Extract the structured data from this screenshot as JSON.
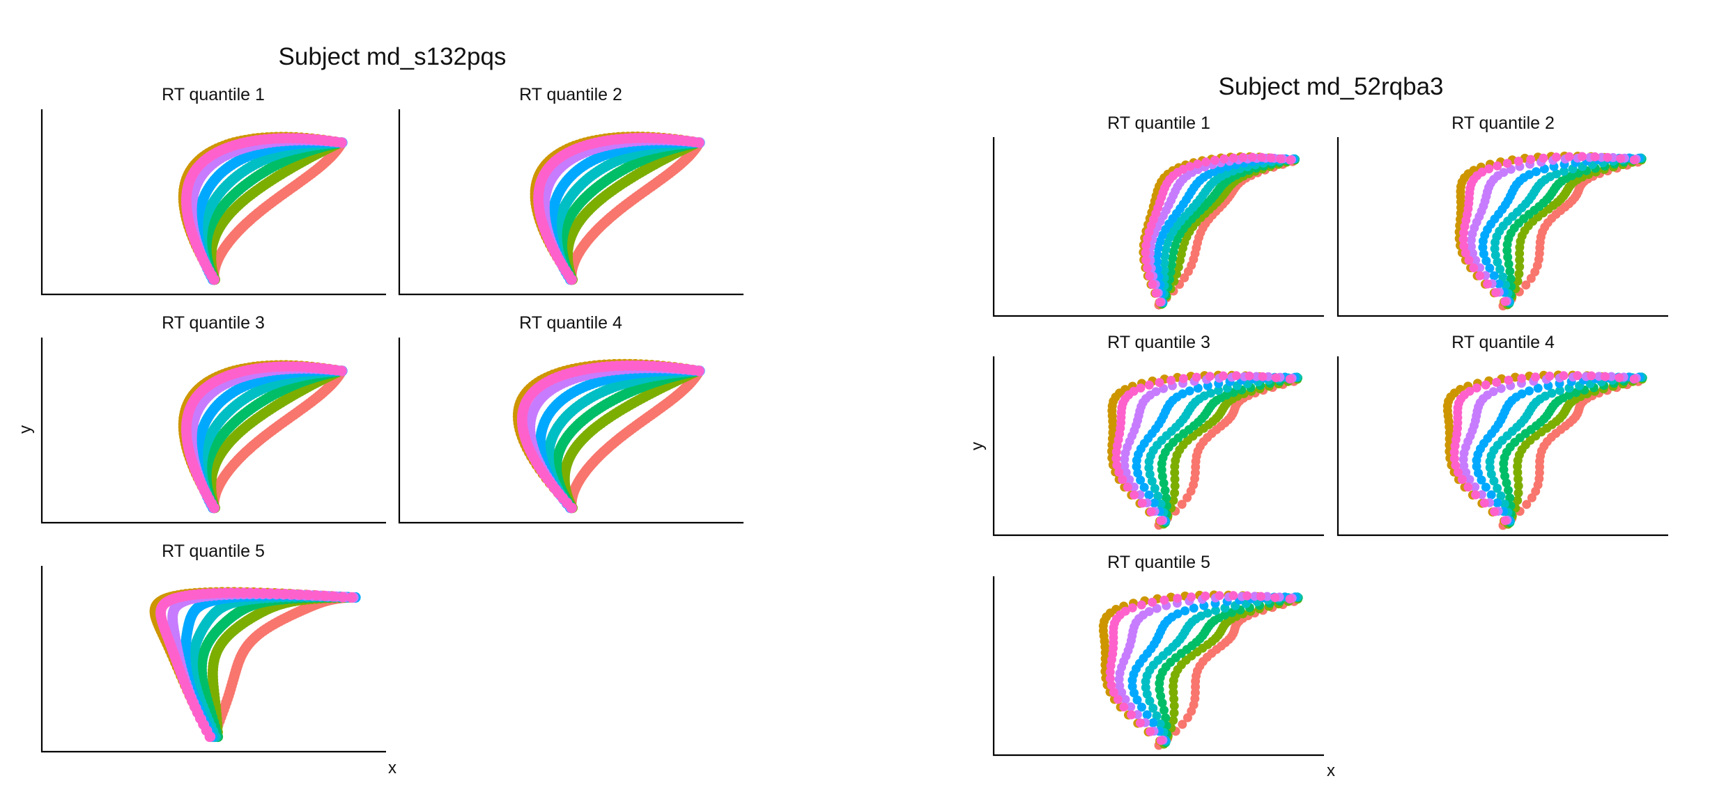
{
  "chart_data": [
    {
      "type": "scatter",
      "title": "Subject md_s132pqs",
      "xlabel": "x",
      "ylabel": "y",
      "facets": [
        {
          "label": "RT quantile 1",
          "shape": "swoosh",
          "loop": 0.0
        },
        {
          "label": "RT quantile 2",
          "shape": "swoosh",
          "loop": 0.15
        },
        {
          "label": "RT quantile 3",
          "shape": "swoosh",
          "loop": 0.0
        },
        {
          "label": "RT quantile 4",
          "shape": "swoosh",
          "loop": 0.6
        },
        {
          "label": "RT quantile 5",
          "shape": "fan",
          "loop": 1.0
        }
      ],
      "series_colors": [
        "#F8766D",
        "#CD9600",
        "#7CAE00",
        "#00BE67",
        "#00BFC4",
        "#00A9FF",
        "#C77CFF",
        "#FF61CC"
      ],
      "grid": false,
      "ticks": false
    },
    {
      "type": "scatter",
      "title": "Subject md_52rqba3",
      "xlabel": "x",
      "ylabel": "y",
      "facets": [
        {
          "label": "RT quantile 1",
          "shape": "triangle",
          "loop": 0.35
        },
        {
          "label": "RT quantile 2",
          "shape": "triangle",
          "loop": 0.85
        },
        {
          "label": "RT quantile 3",
          "shape": "triangle",
          "loop": 0.9
        },
        {
          "label": "RT quantile 4",
          "shape": "triangle",
          "loop": 1.0
        },
        {
          "label": "RT quantile 5",
          "shape": "triangle",
          "loop": 1.0
        }
      ],
      "series_colors": [
        "#F8766D",
        "#CD9600",
        "#7CAE00",
        "#00BE67",
        "#00BFC4",
        "#00A9FF",
        "#C77CFF",
        "#FF61CC"
      ],
      "grid": false,
      "ticks": false
    }
  ]
}
